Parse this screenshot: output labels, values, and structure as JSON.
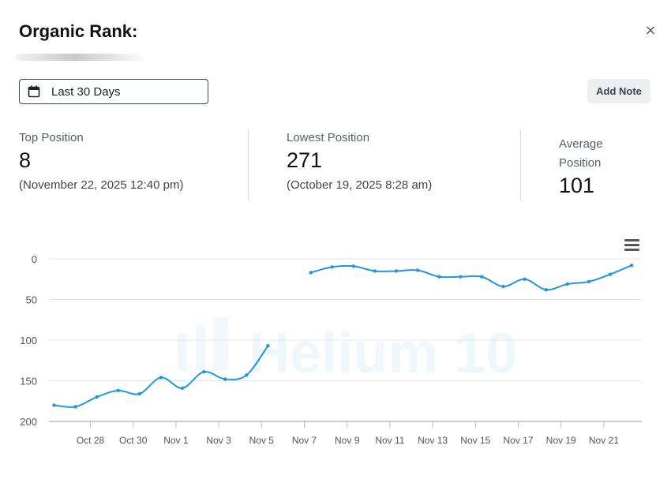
{
  "header": {
    "title": "Organic Rank:",
    "close_label": "×"
  },
  "toolbar": {
    "date_range": "Last 30 Days",
    "add_note_label": "Add Note"
  },
  "stats": {
    "top": {
      "label": "Top Position",
      "value": "8",
      "date": "(November 22, 2025 12:40 pm)"
    },
    "lowest": {
      "label": "Lowest Position",
      "value": "271",
      "date": "(October 19, 2025 8:28 am)"
    },
    "average": {
      "label_line1": "Average",
      "label_line2": "Position",
      "value": "101"
    }
  },
  "watermark": "Helium 10",
  "chart_data": {
    "type": "line",
    "y_reversed": true,
    "ylim": [
      0,
      200
    ],
    "yticks": [
      0,
      50,
      100,
      150,
      200
    ],
    "grid": true,
    "x_tick_labels": [
      "Oct 28",
      "Oct 30",
      "Nov 1",
      "Nov 3",
      "Nov 5",
      "Nov 7",
      "Nov 9",
      "Nov 11",
      "Nov 13",
      "Nov 15",
      "Nov 17",
      "Nov 19",
      "Nov 21"
    ],
    "x_tick_days": [
      1,
      3,
      5,
      7,
      9,
      11,
      13,
      15,
      17,
      19,
      21,
      23,
      25
    ],
    "series": [
      {
        "color": "#2196e0",
        "segments": [
          [
            [
              -0.7,
              180
            ],
            [
              0.3,
              182
            ],
            [
              1.3,
              170
            ],
            [
              2.3,
              162
            ],
            [
              3.3,
              166
            ],
            [
              4.3,
              146
            ],
            [
              5.3,
              159
            ],
            [
              6.3,
              139
            ],
            [
              7.3,
              148
            ],
            [
              8.3,
              143
            ],
            [
              9.3,
              107
            ]
          ],
          [
            [
              11.3,
              17
            ],
            [
              12.3,
              10
            ],
            [
              13.3,
              9
            ],
            [
              14.3,
              15
            ],
            [
              15.3,
              15
            ],
            [
              16.3,
              14
            ],
            [
              17.3,
              22
            ],
            [
              18.3,
              22
            ],
            [
              19.3,
              22
            ],
            [
              20.3,
              34
            ],
            [
              21.3,
              25
            ],
            [
              22.3,
              38
            ],
            [
              23.3,
              31
            ],
            [
              24.3,
              28
            ],
            [
              25.3,
              19
            ],
            [
              26.3,
              8
            ]
          ]
        ]
      }
    ]
  }
}
